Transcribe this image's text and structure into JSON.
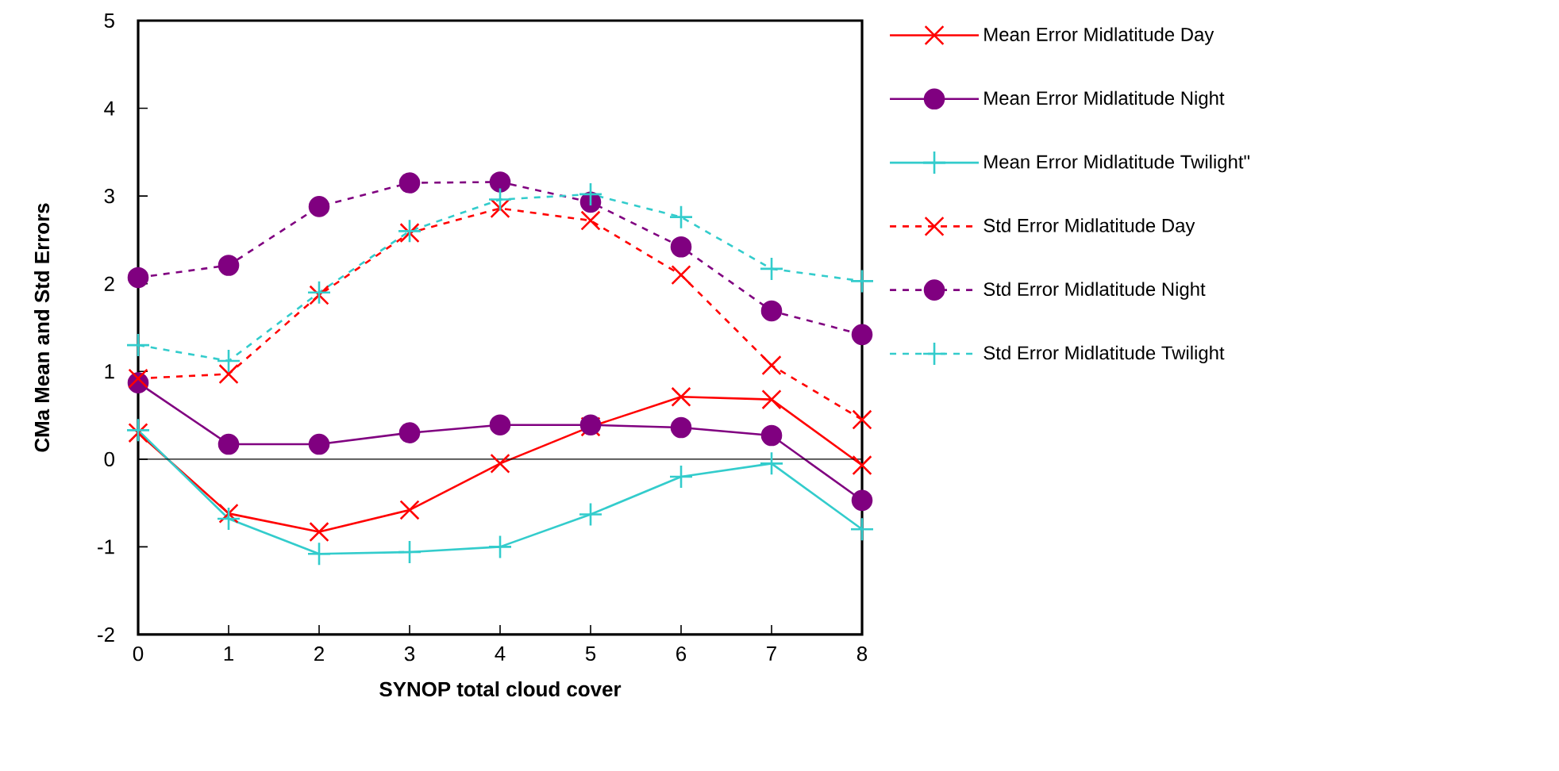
{
  "chart_data": {
    "type": "line",
    "xlabel": "SYNOP total cloud cover",
    "ylabel": "CMa Mean and Std Errors",
    "x": [
      0,
      1,
      2,
      3,
      4,
      5,
      6,
      7,
      8
    ],
    "xlim": [
      0,
      8
    ],
    "xticks": [
      0,
      1,
      2,
      3,
      4,
      5,
      6,
      7,
      8
    ],
    "ylim": [
      -2,
      5
    ],
    "yticks": [
      -2,
      -1,
      0,
      1,
      2,
      3,
      4,
      5
    ],
    "grid": false,
    "legend": "right",
    "ref_lines": [
      {
        "axis": "y",
        "value": 0,
        "color": "#000000"
      }
    ],
    "series": [
      {
        "name": "Mean Error Midlatitude Day",
        "color": "#ff0000",
        "marker": "cross",
        "line_style": "solid",
        "values": [
          0.3,
          -0.62,
          -0.83,
          -0.58,
          -0.05,
          0.37,
          0.71,
          0.68,
          -0.07
        ]
      },
      {
        "name": "Mean Error Midlatitude Night",
        "color": "#800080",
        "marker": "circle",
        "line_style": "solid",
        "values": [
          0.87,
          0.17,
          0.17,
          0.3,
          0.39,
          0.39,
          0.36,
          0.27,
          -0.47
        ]
      },
      {
        "name": "Mean Error Midlatitude Twilight\"",
        "color": "#33cccc",
        "marker": "plus",
        "line_style": "solid",
        "values": [
          0.33,
          -0.68,
          -1.08,
          -1.06,
          -1.0,
          -0.63,
          -0.2,
          -0.05,
          -0.8
        ]
      },
      {
        "name": "Std Error Midlatitude Day",
        "color": "#ff0000",
        "marker": "cross",
        "line_style": "dashed",
        "values": [
          0.92,
          0.97,
          1.87,
          2.58,
          2.86,
          2.72,
          2.1,
          1.07,
          0.45
        ]
      },
      {
        "name": "Std Error Midlatitude Night",
        "color": "#800080",
        "marker": "circle",
        "line_style": "dashed",
        "values": [
          2.07,
          2.21,
          2.88,
          3.15,
          3.16,
          2.93,
          2.42,
          1.69,
          1.42
        ]
      },
      {
        "name": "Std Error Midlatitude Twilight",
        "color": "#33cccc",
        "marker": "plus",
        "line_style": "dashed",
        "values": [
          1.3,
          1.12,
          1.9,
          2.6,
          2.96,
          3.02,
          2.76,
          2.17,
          2.03
        ]
      }
    ]
  }
}
